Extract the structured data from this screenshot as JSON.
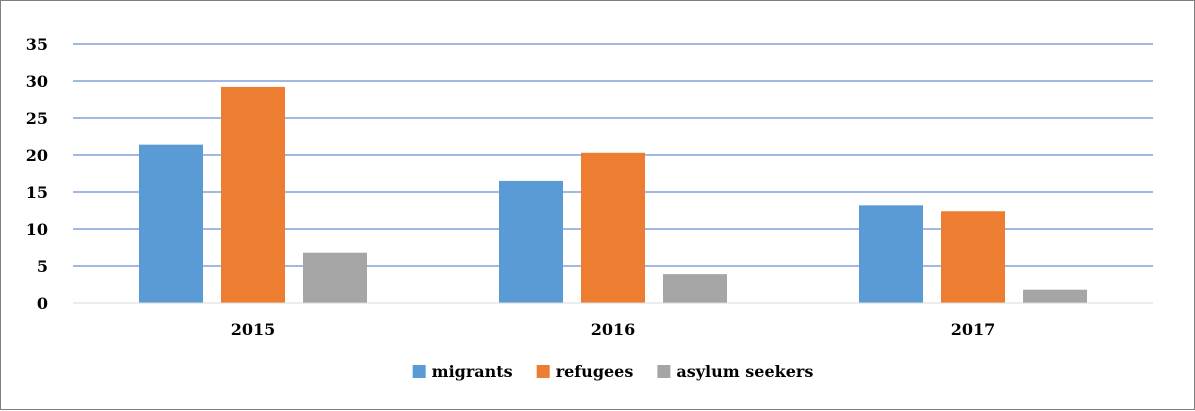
{
  "chart_data": {
    "type": "bar",
    "categories": [
      "2015",
      "2016",
      "2017"
    ],
    "series": [
      {
        "name": "migrants",
        "values": [
          21.4,
          16.5,
          13.2
        ],
        "color": "#5B9BD5"
      },
      {
        "name": "refugees",
        "values": [
          29.2,
          20.3,
          12.4
        ],
        "color": "#ED7D31"
      },
      {
        "name": "asylum seekers",
        "values": [
          6.8,
          3.9,
          1.8
        ],
        "color": "#A5A5A5"
      }
    ],
    "ylim": [
      0,
      35
    ],
    "yticks": [
      0,
      5,
      10,
      15,
      20,
      25,
      30,
      35
    ],
    "grid": true,
    "gridline_color": "#4472C4",
    "legend_position": "bottom"
  }
}
